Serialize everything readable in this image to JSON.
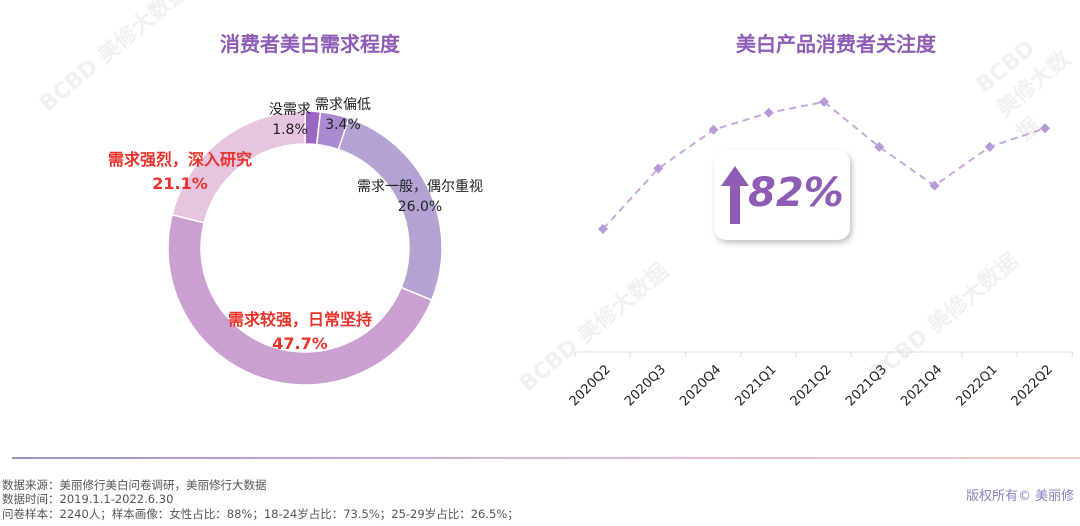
{
  "chart_data": [
    {
      "type": "pie",
      "title": "消费者美白需求程度",
      "donut": true,
      "slices": [
        {
          "label": "没需求",
          "value": 1.8,
          "display": "1.8%",
          "color": "#9a66c4",
          "highlight": false
        },
        {
          "label": "需求偏低",
          "value": 3.4,
          "display": "3.4%",
          "color": "#a98ad0",
          "highlight": false
        },
        {
          "label": "需求一般，偶尔重视",
          "value": 26.0,
          "display": "26.0%",
          "color": "#b3a2d3",
          "highlight": false
        },
        {
          "label": "需求较强，日常坚持",
          "value": 47.7,
          "display": "47.7%",
          "color": "#c9a0cf",
          "highlight": true
        },
        {
          "label": "需求强烈，深入研究",
          "value": 21.1,
          "display": "21.1%",
          "color": "#e7c5e0",
          "highlight": true
        }
      ],
      "highlight_color": "#e8332a"
    },
    {
      "type": "line",
      "title": "美白产品消费者关注度",
      "categories": [
        "2020Q2",
        "2020Q3",
        "2020Q4",
        "2021Q1",
        "2021Q2",
        "2021Q3",
        "2021Q4",
        "2022Q1",
        "2022Q2"
      ],
      "series": [
        {
          "values": [
            100,
            139,
            164,
            175,
            182,
            153,
            128,
            153,
            165
          ],
          "color": "#c9a8dc",
          "style": "dashed",
          "marker": "diamond"
        }
      ],
      "y_axis_shown": false,
      "grid": false,
      "annotation": {
        "text": "82%",
        "icon": "up-arrow-icon",
        "color": "#8e5bb5"
      }
    }
  ],
  "footer": {
    "source": "数据来源：美丽修行美白问卷调研，美丽修行大数据",
    "time": "数据时间：2019.1.1-2022.6.30",
    "sample": "问卷样本：2240人；样本画像：女性占比：88%；18-24岁占比：73.5%；25-29岁占比：26.5%；",
    "copyright": "版权所有© 美丽修"
  },
  "watermark": "BCBD 美修大数据"
}
